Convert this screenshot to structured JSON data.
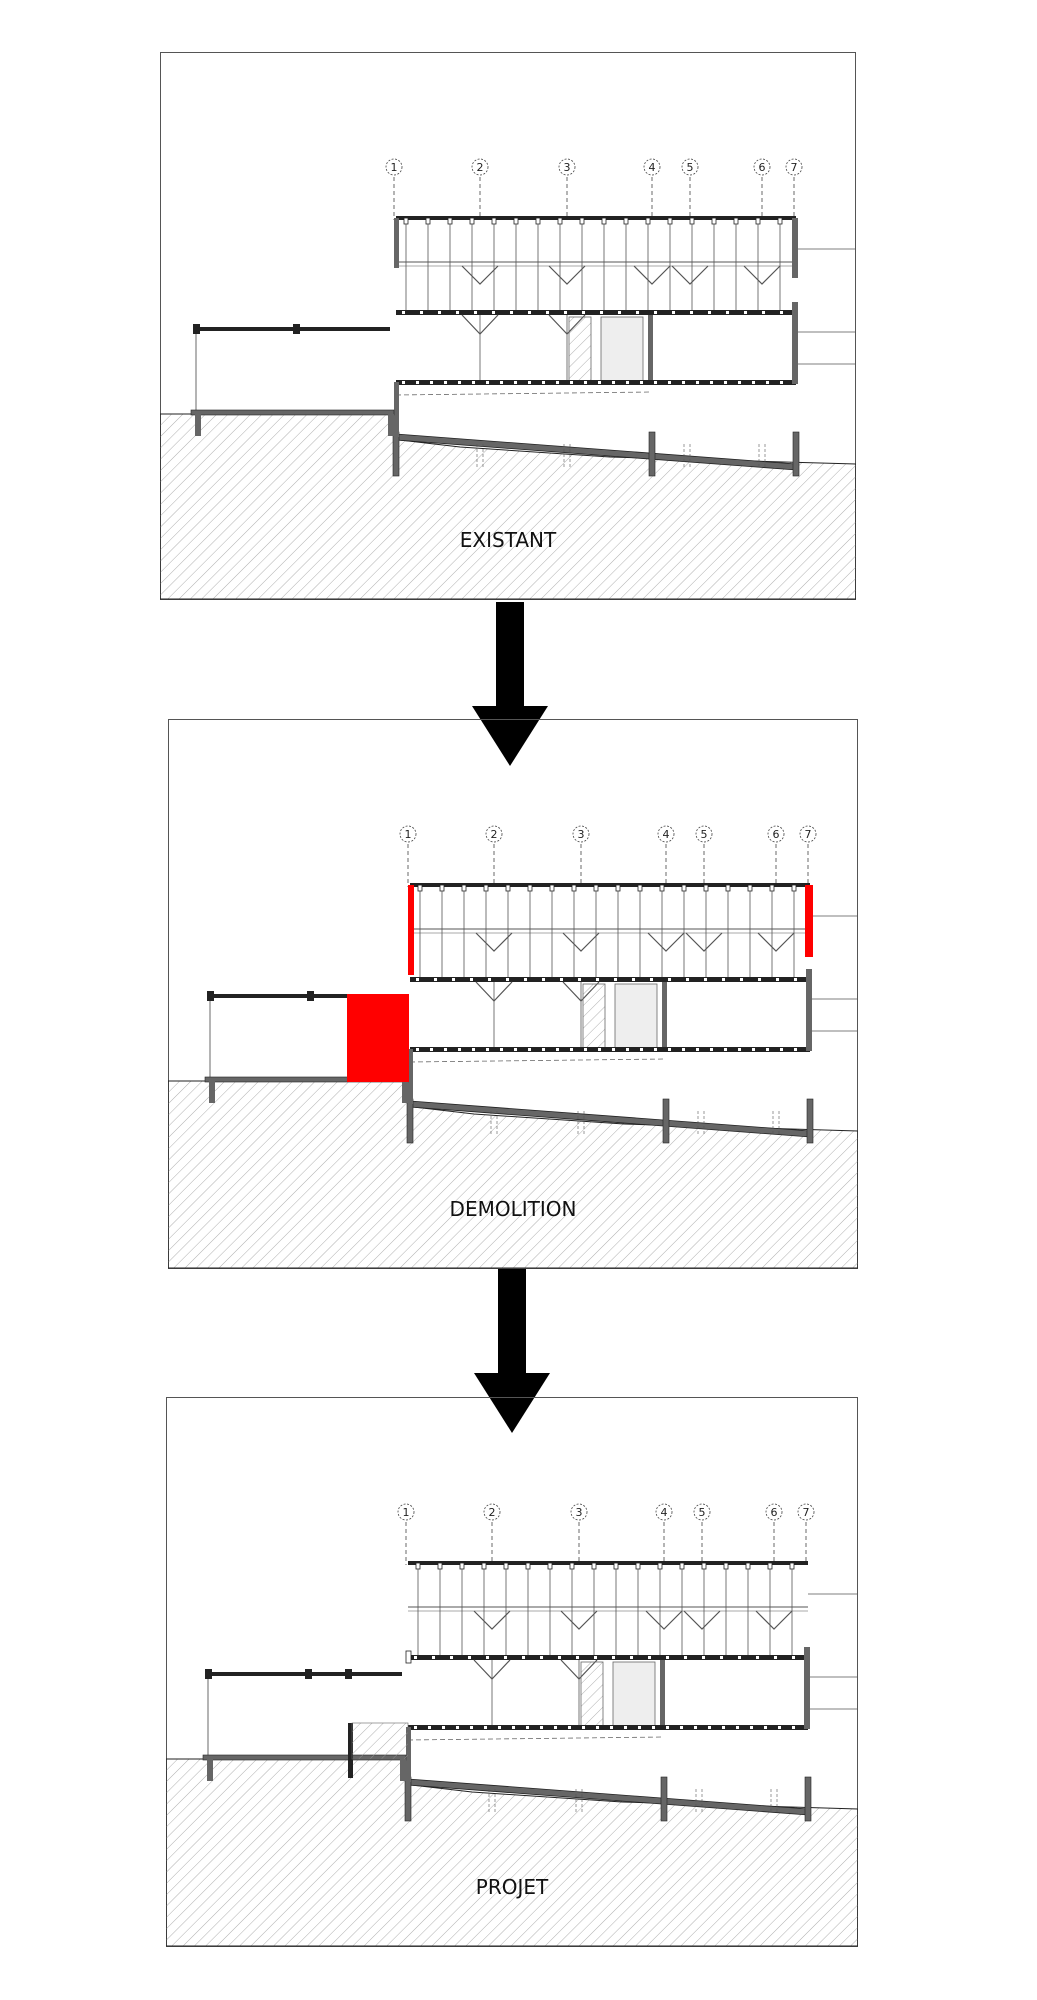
{
  "panels": [
    {
      "label": "EXISTANT",
      "grid_labels": [
        "1",
        "2",
        "3",
        "4",
        "5",
        "6",
        "7"
      ]
    },
    {
      "label": "DEMOLITION",
      "grid_labels": [
        "1",
        "2",
        "3",
        "4",
        "5",
        "6",
        "7"
      ]
    },
    {
      "label": "PROJET",
      "grid_labels": [
        "1",
        "2",
        "3",
        "4",
        "5",
        "6",
        "7"
      ]
    }
  ],
  "colors": {
    "line": "#222222",
    "hatch": "#9a9a9a",
    "demolition": "#ff0000",
    "wall": "#666666",
    "arrow": "#000000"
  }
}
